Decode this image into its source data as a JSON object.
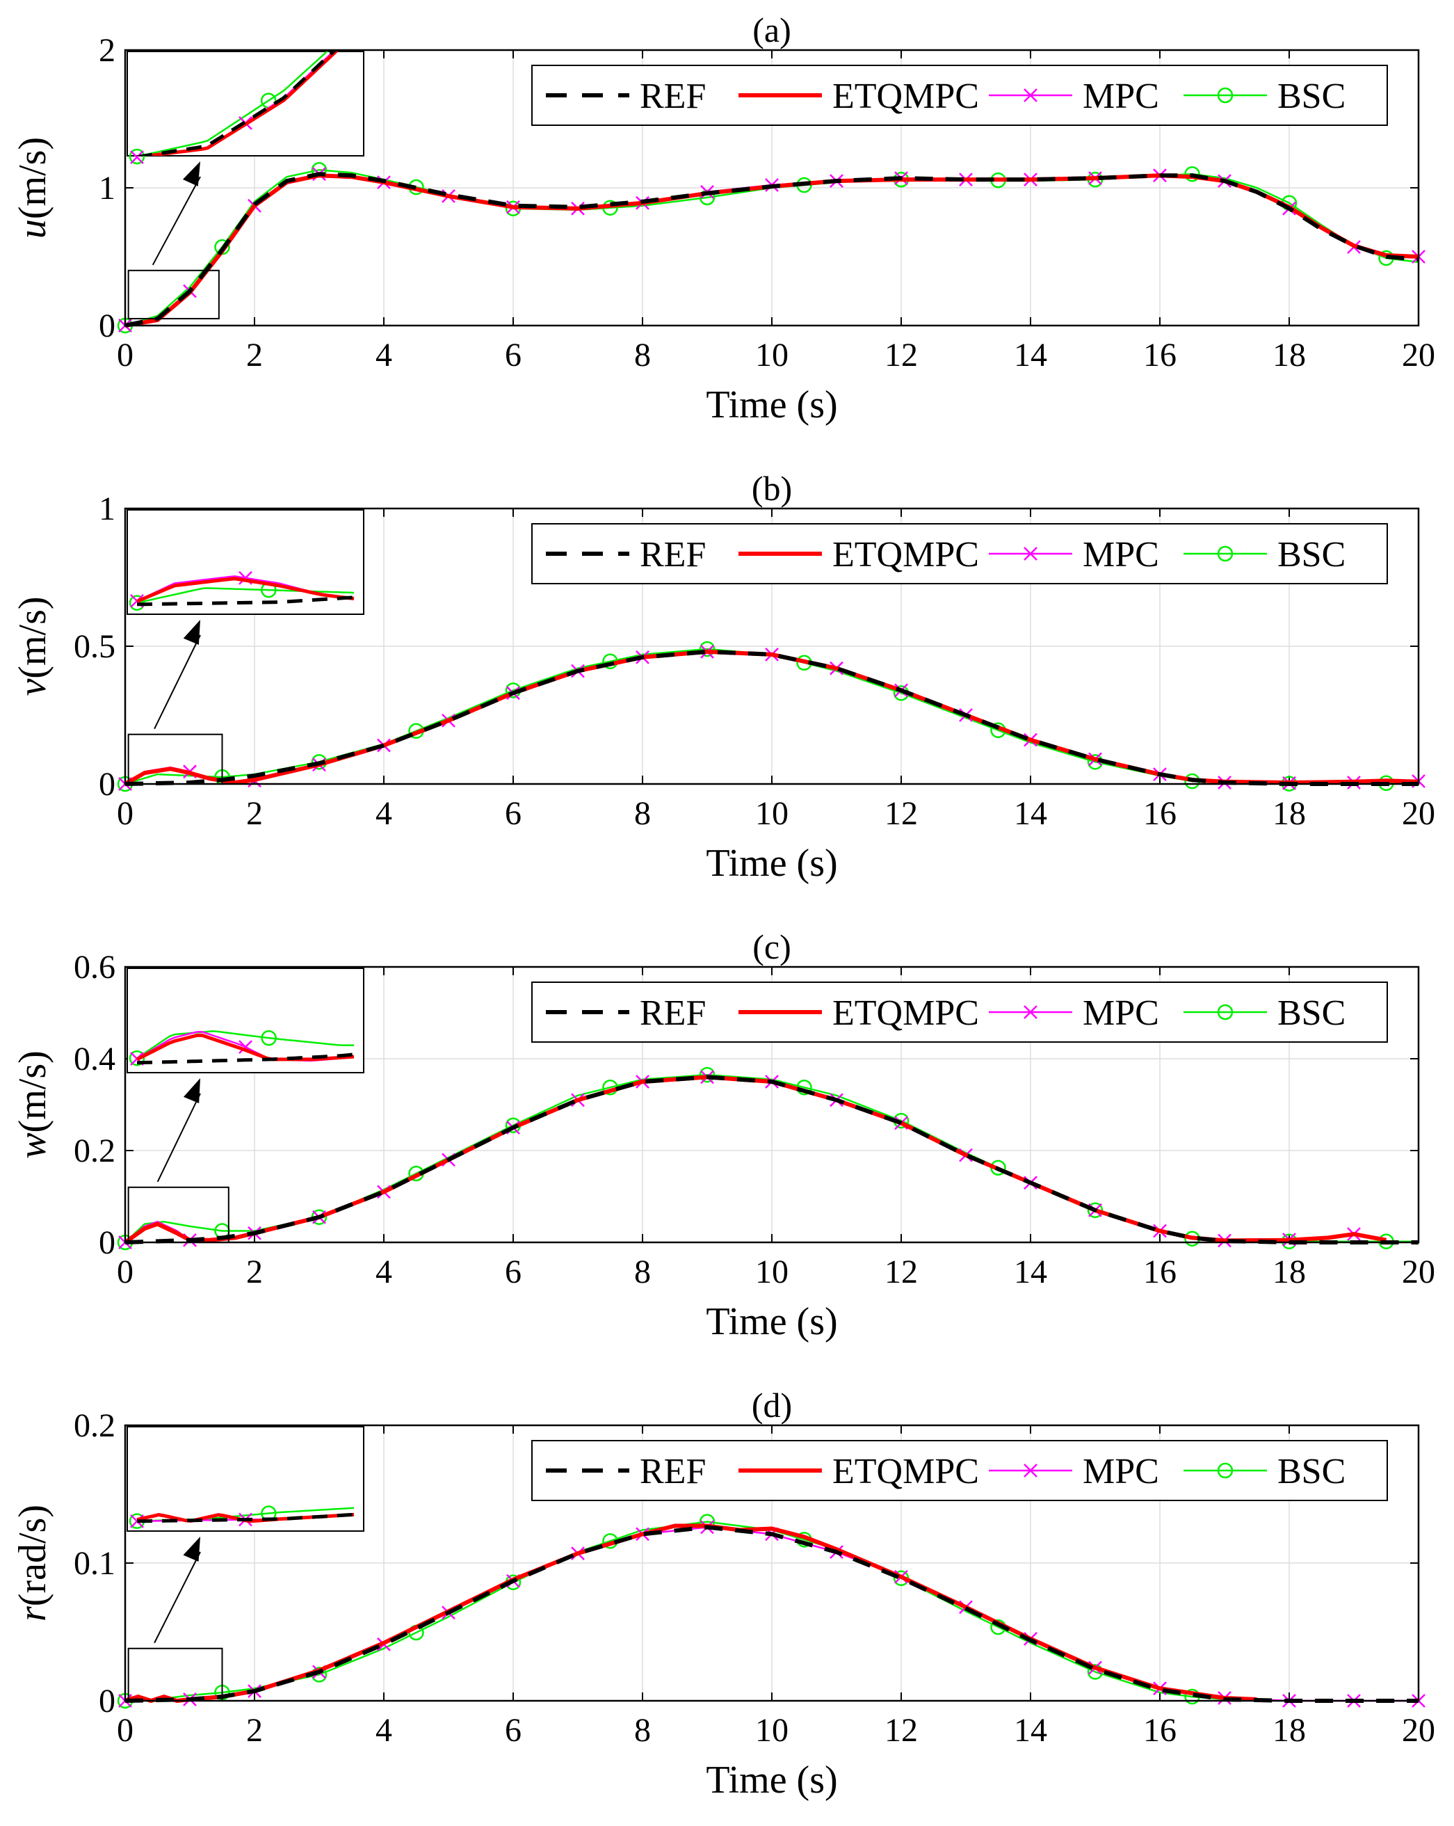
{
  "chart_data": [
    {
      "type": "line",
      "title": "(a)",
      "ylabel_var": "u",
      "ylabel_unit": "(m/s)",
      "xlabel": "Time (s)",
      "xlim": [
        0,
        20
      ],
      "ylim": [
        0,
        2
      ],
      "xticks": [
        "0",
        "2",
        "4",
        "6",
        "8",
        "10",
        "12",
        "14",
        "16",
        "18",
        "20"
      ],
      "yticks": [
        "0",
        "1",
        "2"
      ],
      "grid": true,
      "legend": [
        "REF",
        "ETQMPC",
        "MPC",
        "BSC"
      ],
      "legend_position": "top-right",
      "series": [
        {
          "name": "REF",
          "x": [
            0,
            0.5,
            1,
            1.5,
            2,
            2.5,
            3,
            3.5,
            4,
            5,
            6,
            7,
            8,
            9,
            10,
            11,
            12,
            13,
            14,
            15,
            16,
            16.5,
            17,
            17.5,
            18,
            18.5,
            19,
            19.5,
            20
          ],
          "y": [
            0,
            0.05,
            0.25,
            0.55,
            0.88,
            1.05,
            1.1,
            1.09,
            1.05,
            0.95,
            0.87,
            0.86,
            0.9,
            0.96,
            1.01,
            1.05,
            1.07,
            1.06,
            1.06,
            1.07,
            1.09,
            1.09,
            1.05,
            0.97,
            0.85,
            0.7,
            0.58,
            0.5,
            0.48
          ]
        },
        {
          "name": "ETQMPC",
          "x": [
            0,
            0.5,
            1,
            1.5,
            2,
            2.5,
            3,
            3.5,
            4,
            5,
            6,
            7,
            8,
            9,
            10,
            11,
            12,
            13,
            14,
            15,
            16,
            16.5,
            17,
            17.5,
            18,
            18.5,
            19,
            19.5,
            20
          ],
          "y": [
            0,
            0.04,
            0.24,
            0.54,
            0.87,
            1.04,
            1.09,
            1.08,
            1.04,
            0.94,
            0.86,
            0.85,
            0.89,
            0.96,
            1.01,
            1.05,
            1.06,
            1.06,
            1.06,
            1.07,
            1.09,
            1.08,
            1.05,
            0.97,
            0.86,
            0.71,
            0.58,
            0.51,
            0.5
          ]
        },
        {
          "name": "MPC",
          "x": [
            0,
            0.5,
            1,
            1.5,
            2,
            2.5,
            3,
            3.5,
            4,
            5,
            6,
            7,
            8,
            9,
            10,
            11,
            12,
            13,
            14,
            15,
            16,
            16.5,
            17,
            17.5,
            18,
            18.5,
            19,
            19.5,
            20
          ],
          "y": [
            0,
            0.04,
            0.25,
            0.55,
            0.87,
            1.05,
            1.1,
            1.08,
            1.04,
            0.94,
            0.86,
            0.85,
            0.89,
            0.97,
            1.02,
            1.05,
            1.07,
            1.06,
            1.06,
            1.07,
            1.09,
            1.09,
            1.05,
            0.97,
            0.85,
            0.7,
            0.57,
            0.5,
            0.5
          ]
        },
        {
          "name": "BSC",
          "x": [
            0,
            0.5,
            1,
            1.5,
            2,
            2.5,
            3,
            3.5,
            4,
            5,
            6,
            7,
            8,
            9,
            10,
            11,
            12,
            13,
            14,
            15,
            16,
            16.5,
            17,
            17.5,
            18,
            18.5,
            19,
            19.5,
            20
          ],
          "y": [
            0,
            0.07,
            0.28,
            0.57,
            0.9,
            1.08,
            1.13,
            1.11,
            1.06,
            0.95,
            0.85,
            0.84,
            0.87,
            0.93,
            1.0,
            1.04,
            1.06,
            1.06,
            1.05,
            1.06,
            1.09,
            1.1,
            1.07,
            1.0,
            0.89,
            0.73,
            0.58,
            0.49,
            0.46
          ]
        }
      ],
      "inset_box_data": {
        "x": [
          0.05,
          1.45
        ],
        "y": [
          0.05,
          0.4
        ]
      }
    },
    {
      "type": "line",
      "title": "(b)",
      "ylabel_var": "v",
      "ylabel_unit": "(m/s)",
      "xlabel": "Time (s)",
      "xlim": [
        0,
        20
      ],
      "ylim": [
        0,
        1
      ],
      "xticks": [
        "0",
        "2",
        "4",
        "6",
        "8",
        "10",
        "12",
        "14",
        "16",
        "18",
        "20"
      ],
      "yticks": [
        "0",
        "0.5",
        "1"
      ],
      "grid": true,
      "legend": [
        "REF",
        "ETQMPC",
        "MPC",
        "BSC"
      ],
      "legend_position": "top-right",
      "series": [
        {
          "name": "REF",
          "x": [
            0,
            1,
            1.5,
            2,
            3,
            4,
            5,
            6,
            7,
            8,
            9,
            10,
            11,
            12,
            13,
            14,
            15,
            16,
            16.5,
            17,
            18,
            19,
            20
          ],
          "y": [
            0,
            0.005,
            0.015,
            0.03,
            0.075,
            0.14,
            0.23,
            0.33,
            0.41,
            0.46,
            0.48,
            0.47,
            0.42,
            0.34,
            0.25,
            0.16,
            0.09,
            0.035,
            0.015,
            0.005,
            0,
            0,
            0
          ]
        },
        {
          "name": "ETQMPC",
          "x": [
            0,
            0.3,
            0.7,
            1,
            1.3,
            1.7,
            2,
            3,
            4,
            5,
            6,
            7,
            8,
            9,
            10,
            11,
            12,
            13,
            14,
            15,
            16,
            16.5,
            17,
            18,
            19,
            19.5,
            20
          ],
          "y": [
            0,
            0.04,
            0.055,
            0.04,
            0.02,
            0.005,
            0.015,
            0.07,
            0.14,
            0.23,
            0.33,
            0.41,
            0.46,
            0.48,
            0.47,
            0.42,
            0.34,
            0.25,
            0.16,
            0.09,
            0.035,
            0.015,
            0.008,
            0.005,
            0.008,
            0.012,
            0.008
          ]
        },
        {
          "name": "MPC",
          "x": [
            0,
            0.3,
            0.7,
            1,
            1.3,
            1.7,
            2,
            3,
            4,
            5,
            6,
            7,
            8,
            9,
            10,
            11,
            12,
            13,
            14,
            15,
            16,
            16.5,
            17,
            18,
            19,
            20
          ],
          "y": [
            0,
            0.045,
            0.06,
            0.045,
            0.02,
            0.003,
            0.012,
            0.07,
            0.14,
            0.23,
            0.33,
            0.41,
            0.46,
            0.48,
            0.47,
            0.42,
            0.34,
            0.25,
            0.16,
            0.09,
            0.035,
            0.015,
            0.005,
            0.003,
            0.005,
            0.01
          ]
        },
        {
          "name": "BSC",
          "x": [
            0,
            0.5,
            1,
            1.5,
            2,
            3,
            4,
            5,
            6,
            7,
            8,
            9,
            10,
            11,
            12,
            13,
            14,
            15,
            16,
            16.5,
            17,
            18,
            19,
            19.5,
            20
          ],
          "y": [
            0,
            0.035,
            0.03,
            0.025,
            0.035,
            0.08,
            0.145,
            0.24,
            0.34,
            0.42,
            0.47,
            0.49,
            0.47,
            0.41,
            0.33,
            0.24,
            0.15,
            0.08,
            0.03,
            0.01,
            0.003,
            0.001,
            0.002,
            0.003,
            0.003
          ]
        }
      ],
      "inset_box_data": {
        "x": [
          0.05,
          1.5
        ],
        "y": [
          0,
          0.18
        ]
      }
    },
    {
      "type": "line",
      "title": "(c)",
      "ylabel_var": "w",
      "ylabel_unit": "(m/s)",
      "xlabel": "Time (s)",
      "xlim": [
        0,
        20
      ],
      "ylim": [
        0,
        0.6
      ],
      "xticks": [
        "0",
        "2",
        "4",
        "6",
        "8",
        "10",
        "12",
        "14",
        "16",
        "18",
        "20"
      ],
      "yticks": [
        "0",
        "0.2",
        "0.4",
        "0.6"
      ],
      "grid": true,
      "legend": [
        "REF",
        "ETQMPC",
        "MPC",
        "BSC"
      ],
      "legend_position": "top-right",
      "series": [
        {
          "name": "REF",
          "x": [
            0,
            1,
            1.5,
            2,
            3,
            4,
            5,
            6,
            7,
            8,
            9,
            10,
            11,
            12,
            13,
            14,
            15,
            16,
            16.5,
            17,
            18,
            19,
            20
          ],
          "y": [
            0,
            0.005,
            0.01,
            0.02,
            0.055,
            0.11,
            0.18,
            0.25,
            0.31,
            0.35,
            0.36,
            0.35,
            0.31,
            0.26,
            0.19,
            0.13,
            0.07,
            0.025,
            0.01,
            0.003,
            0,
            0,
            0
          ]
        },
        {
          "name": "ETQMPC",
          "x": [
            0,
            0.3,
            0.5,
            0.8,
            1,
            1.3,
            1.7,
            2,
            3,
            4,
            5,
            6,
            7,
            8,
            9,
            10,
            11,
            12,
            13,
            14,
            15,
            16,
            16.5,
            17,
            18,
            18.6,
            19,
            19.5
          ],
          "y": [
            0,
            0.03,
            0.04,
            0.02,
            0.005,
            0.005,
            0.01,
            0.02,
            0.055,
            0.11,
            0.18,
            0.25,
            0.31,
            0.35,
            0.36,
            0.35,
            0.31,
            0.26,
            0.19,
            0.13,
            0.07,
            0.025,
            0.01,
            0.004,
            0.005,
            0.01,
            0.018,
            0.005
          ]
        },
        {
          "name": "MPC",
          "x": [
            0,
            0.3,
            0.5,
            0.8,
            1,
            1.3,
            1.7,
            2,
            3,
            4,
            5,
            6,
            7,
            8,
            9,
            10,
            11,
            12,
            13,
            14,
            15,
            16,
            16.5,
            17,
            18,
            18.6,
            19,
            19.5
          ],
          "y": [
            0,
            0.035,
            0.045,
            0.025,
            0.005,
            0.003,
            0.01,
            0.02,
            0.055,
            0.11,
            0.18,
            0.25,
            0.31,
            0.35,
            0.36,
            0.35,
            0.31,
            0.26,
            0.19,
            0.13,
            0.07,
            0.025,
            0.01,
            0.004,
            0.006,
            0.012,
            0.018,
            0.005
          ]
        },
        {
          "name": "BSC",
          "x": [
            0,
            0.3,
            0.6,
            1,
            1.5,
            2,
            3,
            4,
            5,
            6,
            7,
            8,
            9,
            10,
            11,
            12,
            13,
            14,
            15,
            16,
            16.5,
            17,
            18,
            19,
            20
          ],
          "y": [
            0,
            0.04,
            0.045,
            0.035,
            0.025,
            0.025,
            0.055,
            0.115,
            0.185,
            0.255,
            0.32,
            0.355,
            0.365,
            0.355,
            0.32,
            0.265,
            0.195,
            0.13,
            0.07,
            0.025,
            0.008,
            0.003,
            0.002,
            0.002,
            0.002
          ]
        }
      ],
      "inset_box_data": {
        "x": [
          0.05,
          1.6
        ],
        "y": [
          0,
          0.12
        ]
      }
    },
    {
      "type": "line",
      "title": "(d)",
      "ylabel_var": "r",
      "ylabel_unit": "(rad/s)",
      "xlabel": "Time (s)",
      "xlim": [
        0,
        20
      ],
      "ylim": [
        0,
        0.2
      ],
      "xticks": [
        "0",
        "2",
        "4",
        "6",
        "8",
        "10",
        "12",
        "14",
        "16",
        "18",
        "20"
      ],
      "yticks": [
        "0",
        "0.1",
        "0.2"
      ],
      "grid": true,
      "legend": [
        "REF",
        "ETQMPC",
        "MPC",
        "BSC"
      ],
      "legend_position": "top-right",
      "series": [
        {
          "name": "REF",
          "x": [
            0,
            1,
            1.5,
            2,
            3,
            4,
            5,
            6,
            7,
            8,
            9,
            10,
            11,
            12,
            13,
            14,
            15,
            16,
            17,
            18,
            19,
            20
          ],
          "y": [
            0,
            0.001,
            0.003,
            0.007,
            0.021,
            0.041,
            0.064,
            0.087,
            0.107,
            0.121,
            0.126,
            0.121,
            0.108,
            0.089,
            0.067,
            0.044,
            0.023,
            0.008,
            0.001,
            0,
            0,
            0
          ]
        },
        {
          "name": "ETQMPC",
          "x": [
            0,
            0.2,
            0.4,
            0.6,
            0.8,
            1,
            1.5,
            2,
            3,
            4,
            5,
            6,
            7,
            8,
            8.5,
            9,
            9.5,
            10,
            10.5,
            11,
            12,
            13,
            14,
            15,
            16,
            17,
            17.5
          ],
          "y": [
            0,
            0.003,
            0,
            0.003,
            0,
            0.001,
            0.003,
            0.007,
            0.022,
            0.042,
            0.065,
            0.088,
            0.107,
            0.121,
            0.127,
            0.127,
            0.124,
            0.125,
            0.119,
            0.11,
            0.09,
            0.068,
            0.045,
            0.024,
            0.009,
            0.002,
            0.001
          ]
        },
        {
          "name": "MPC",
          "x": [
            0,
            1,
            1.5,
            2,
            3,
            4,
            5,
            6,
            7,
            8,
            9,
            10,
            11,
            12,
            13,
            14,
            15,
            16,
            17,
            18,
            19,
            20
          ],
          "y": [
            0,
            0.001,
            0.003,
            0.007,
            0.021,
            0.041,
            0.064,
            0.087,
            0.107,
            0.121,
            0.126,
            0.121,
            0.108,
            0.09,
            0.068,
            0.045,
            0.024,
            0.009,
            0.002,
            0,
            0,
            0
          ]
        },
        {
          "name": "BSC",
          "x": [
            0,
            0.5,
            1,
            1.5,
            2,
            3,
            4,
            5,
            6,
            7,
            8,
            9,
            10,
            11,
            12,
            13,
            14,
            15,
            16,
            16.5,
            17
          ],
          "y": [
            0,
            0.001,
            0.004,
            0.006,
            0.009,
            0.019,
            0.038,
            0.061,
            0.086,
            0.108,
            0.124,
            0.13,
            0.124,
            0.11,
            0.089,
            0.065,
            0.042,
            0.021,
            0.006,
            0.003,
            0.001
          ]
        }
      ],
      "inset_box_data": {
        "x": [
          0.05,
          1.5
        ],
        "y": [
          0,
          0.038
        ]
      }
    }
  ]
}
